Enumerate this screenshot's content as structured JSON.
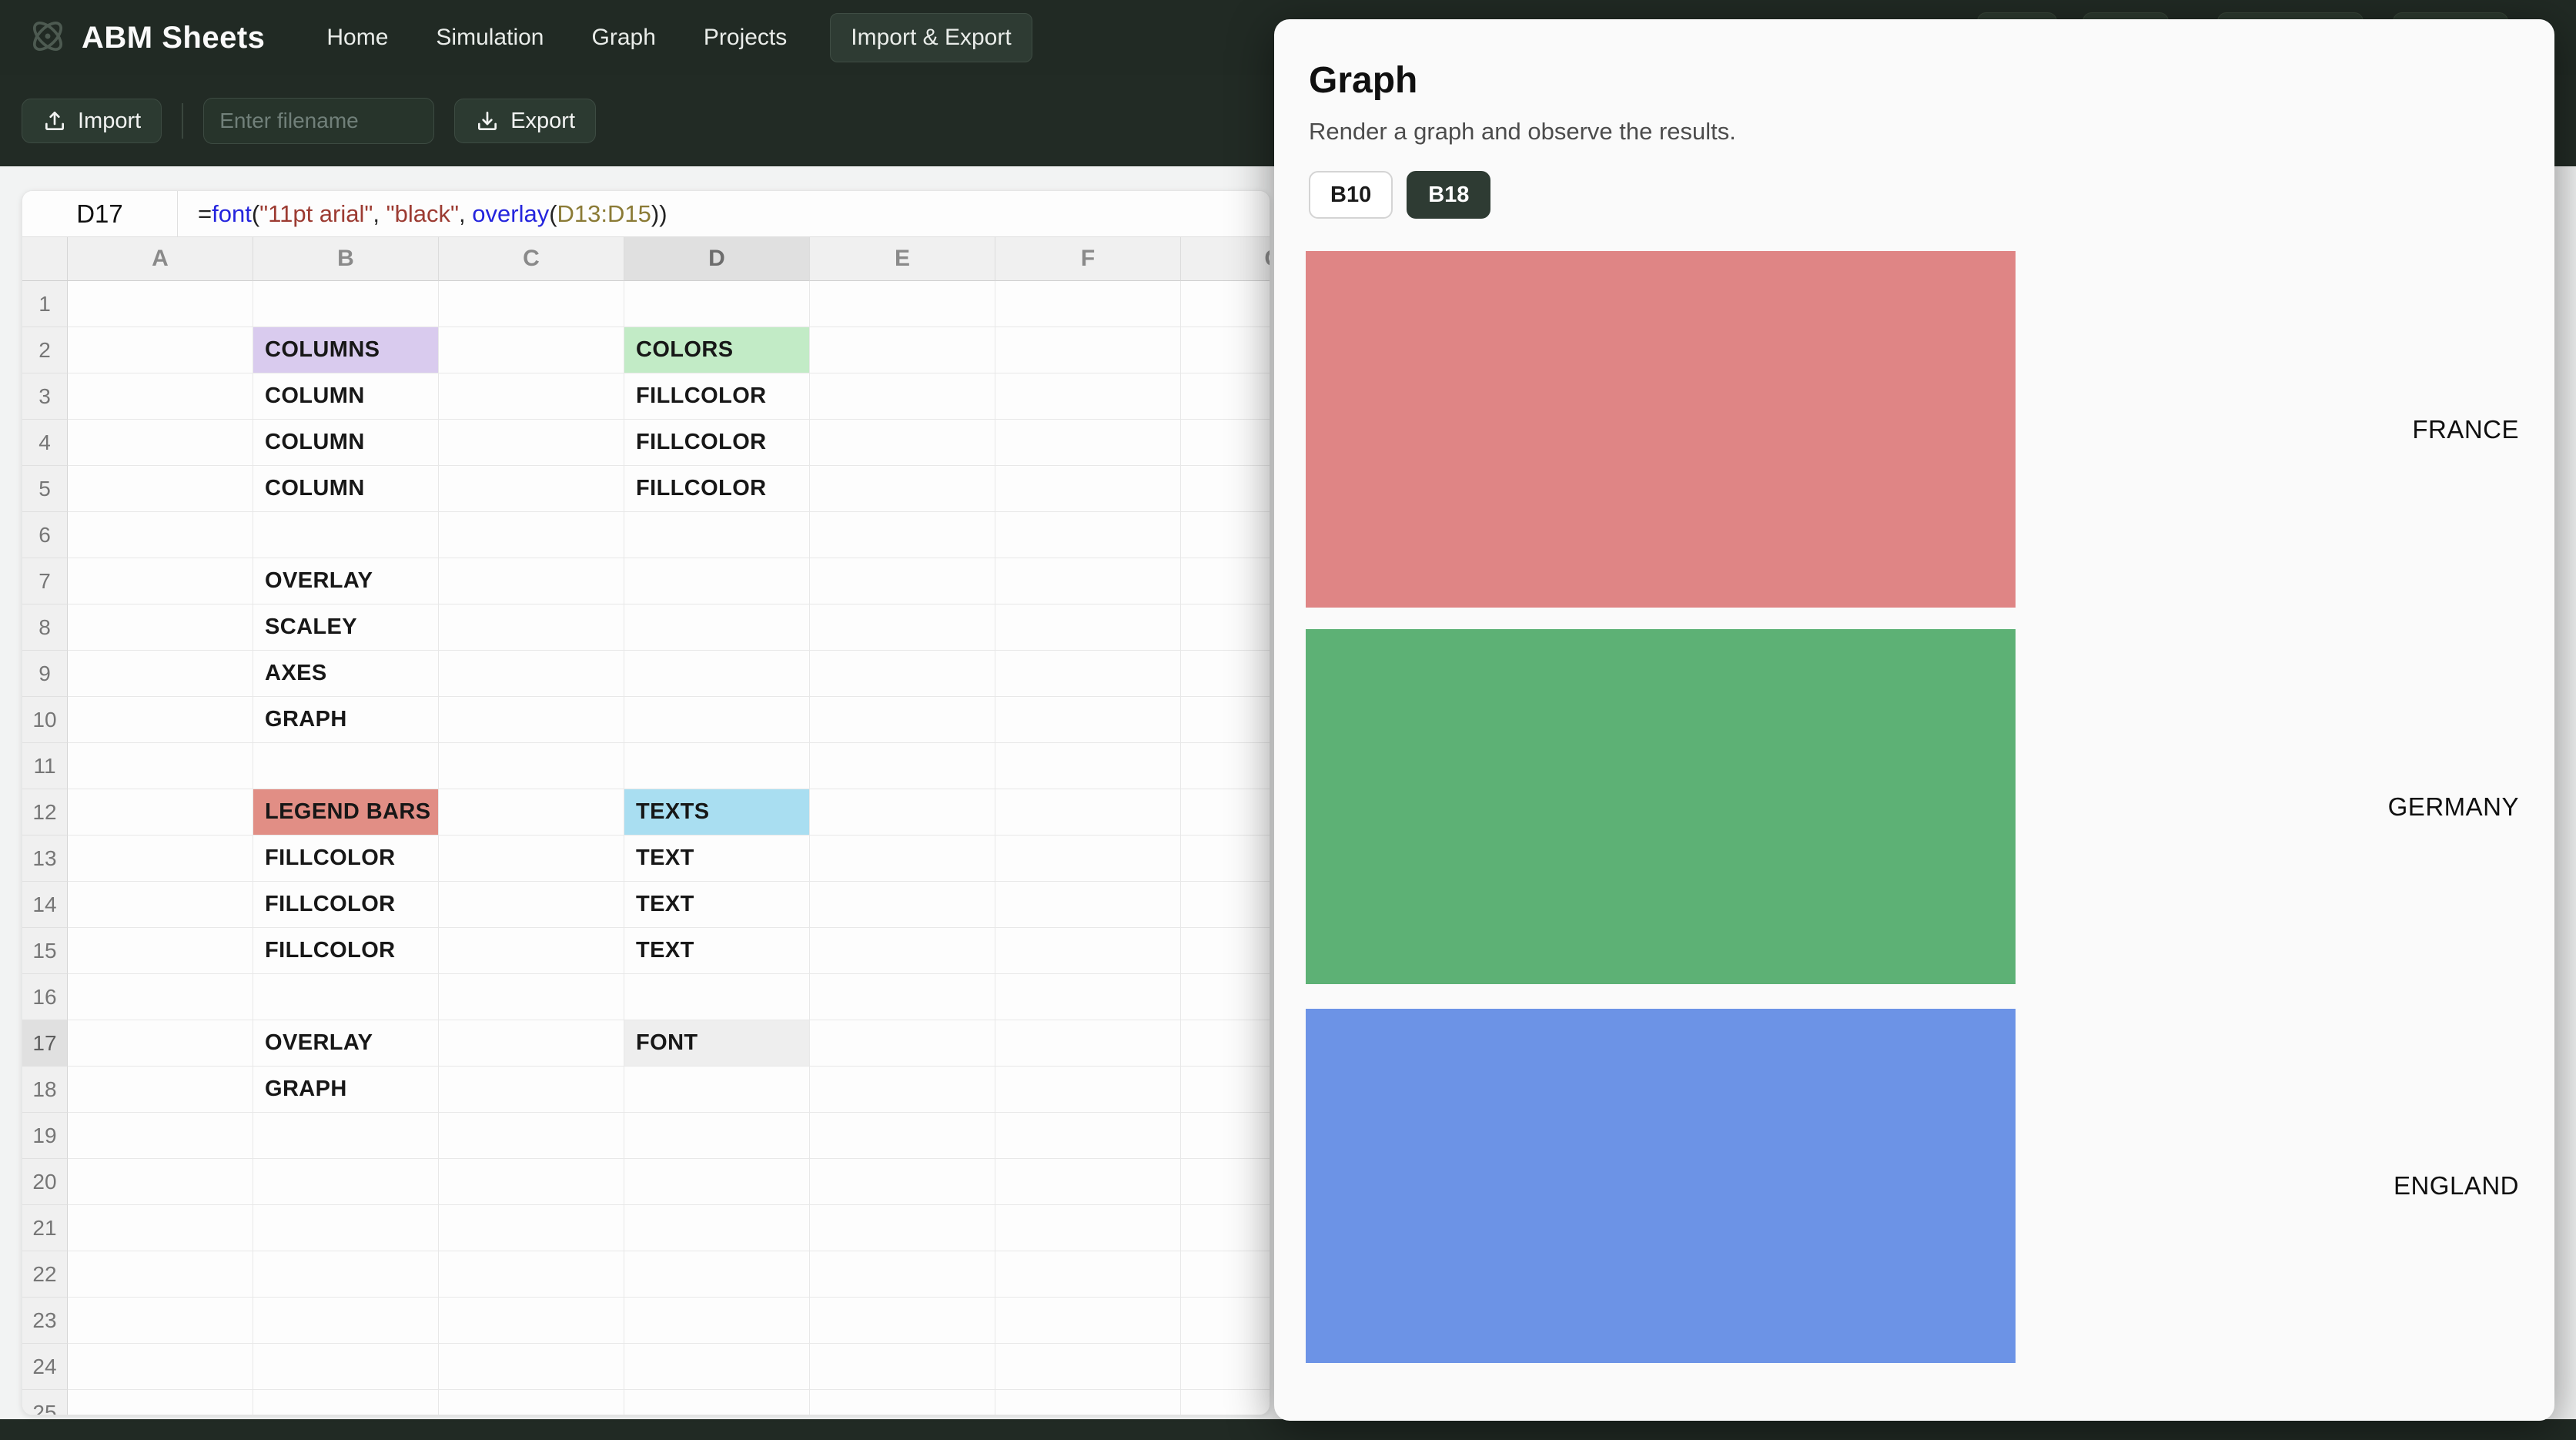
{
  "navbar": {
    "brand": "ABM Sheets",
    "items": [
      {
        "label": "Home",
        "active": false
      },
      {
        "label": "Simulation",
        "active": false
      },
      {
        "label": "Graph",
        "active": false
      },
      {
        "label": "Projects",
        "active": false
      },
      {
        "label": "Import & Export",
        "active": true
      }
    ]
  },
  "toolbar": {
    "import_label": "Import",
    "filename_placeholder": "Enter filename",
    "export_label": "Export"
  },
  "formula_bar": {
    "cell_ref": "D17",
    "formula_full": "=font(\"11pt arial\", \"black\", overlay(D13:D15))",
    "tokens": [
      {
        "text": "=",
        "type": "plain"
      },
      {
        "text": "font",
        "type": "func"
      },
      {
        "text": "(",
        "type": "plain"
      },
      {
        "text": "\"11pt arial\"",
        "type": "string"
      },
      {
        "text": ", ",
        "type": "plain"
      },
      {
        "text": "\"black\"",
        "type": "string"
      },
      {
        "text": ", ",
        "type": "plain"
      },
      {
        "text": "overlay",
        "type": "func"
      },
      {
        "text": "(",
        "type": "plain"
      },
      {
        "text": "D13:D15",
        "type": "ref"
      },
      {
        "text": "))",
        "type": "plain"
      }
    ]
  },
  "spreadsheet": {
    "columns": [
      "A",
      "B",
      "C",
      "D",
      "E",
      "F",
      "G"
    ],
    "row_count": 25,
    "selected_column": "D",
    "selected_row": 17,
    "selected_cell": "D17",
    "cells": {
      "B2": {
        "text": "COLUMNS",
        "bg": "#d9cbee"
      },
      "D2": {
        "text": "COLORS",
        "bg": "#c2ebc6"
      },
      "B3": {
        "text": "COLUMN"
      },
      "D3": {
        "text": "FILLCOLOR"
      },
      "B4": {
        "text": "COLUMN"
      },
      "D4": {
        "text": "FILLCOLOR"
      },
      "B5": {
        "text": "COLUMN"
      },
      "D5": {
        "text": "FILLCOLOR"
      },
      "B7": {
        "text": "OVERLAY"
      },
      "B8": {
        "text": "SCALEY"
      },
      "B9": {
        "text": "AXES"
      },
      "B10": {
        "text": "GRAPH"
      },
      "B12": {
        "text": "LEGEND BARS",
        "bg": "#e18e85"
      },
      "D12": {
        "text": "TEXTS",
        "bg": "#a9def1"
      },
      "B13": {
        "text": "FILLCOLOR"
      },
      "D13": {
        "text": "TEXT"
      },
      "B14": {
        "text": "FILLCOLOR"
      },
      "D14": {
        "text": "TEXT"
      },
      "B15": {
        "text": "FILLCOLOR"
      },
      "D15": {
        "text": "TEXT"
      },
      "B17": {
        "text": "OVERLAY"
      },
      "D17": {
        "text": "FONT",
        "bg": "#eeeeee"
      },
      "B18": {
        "text": "GRAPH"
      }
    }
  },
  "panel": {
    "title": "Graph",
    "subtitle": "Render a graph and observe the results.",
    "tabs": [
      {
        "label": "B10",
        "active": false
      },
      {
        "label": "B18",
        "active": true
      }
    ]
  },
  "chart_data": {
    "type": "bar",
    "orientation": "horizontal-legend-blocks",
    "categories": [
      "FRANCE",
      "GERMANY",
      "ENGLAND"
    ],
    "series": [
      {
        "name": "legend bars",
        "values": [
          1,
          1,
          1
        ]
      }
    ],
    "colors": [
      "#df8585",
      "#5db175",
      "#6c93e6"
    ],
    "legend_position": "right",
    "title": "",
    "xlabel": "",
    "ylabel": "",
    "grid": false
  },
  "theme": {
    "navbar_bg": "#212a24",
    "active_chip_bg": "#2e3b33",
    "panel_bg": "#fafafa",
    "selection_bg": "#e0e0e0"
  }
}
